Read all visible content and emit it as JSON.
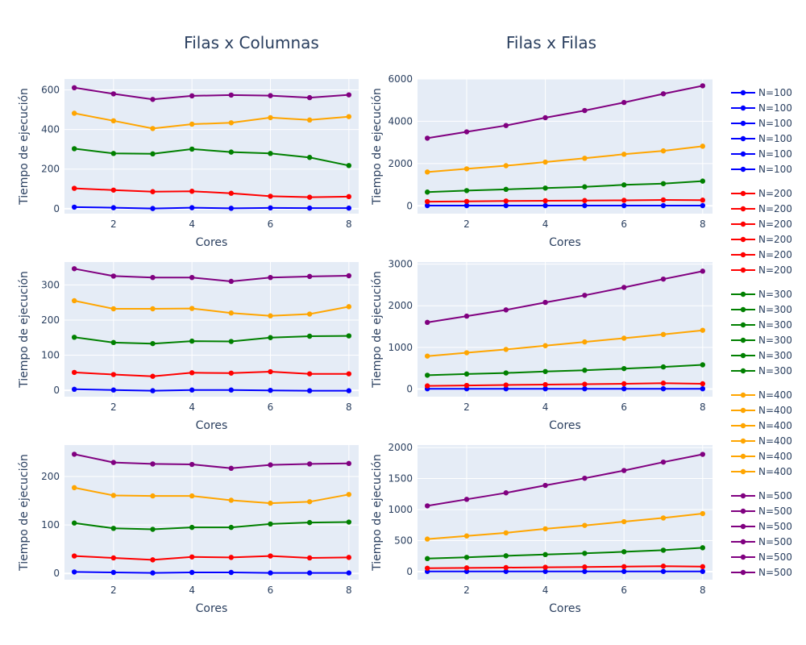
{
  "chart_data": {
    "type": "line",
    "subplot_titles": [
      "Filas x Columnas",
      "Filas x Filas"
    ],
    "xlabel": "Cores",
    "ylabel": "Tiempo de ejecución",
    "x": [
      1,
      2,
      3,
      4,
      5,
      6,
      7,
      8
    ],
    "xlim": [
      0.75,
      8.25
    ],
    "x_ticks": [
      2,
      4,
      6,
      8
    ],
    "grid": true,
    "legend_position": "right",
    "colors": {
      "N=100": "#0000ff",
      "N=200": "#ff0000",
      "N=300": "#008000",
      "N=400": "#ffa500",
      "N=500": "#800080"
    },
    "panels": [
      {
        "row": 1,
        "col": 1,
        "title": "Filas x Columnas",
        "ylim": [
          -25,
          655
        ],
        "y_ticks": [
          0,
          200,
          400,
          600
        ],
        "series": [
          {
            "name": "N=100",
            "color": "#0000ff",
            "values": [
              8,
              5,
              1,
              5,
              2,
              4,
              3,
              3
            ]
          },
          {
            "name": "N=200",
            "color": "#ff0000",
            "values": [
              103,
              94,
              86,
              88,
              78,
              63,
              58,
              61
            ]
          },
          {
            "name": "N=300",
            "color": "#008000",
            "values": [
              303,
              279,
              277,
              301,
              286,
              279,
              259,
              218
            ]
          },
          {
            "name": "N=400",
            "color": "#ffa500",
            "values": [
              482,
              444,
              405,
              427,
              434,
              460,
              448,
              465
            ]
          },
          {
            "name": "N=500",
            "color": "#800080",
            "values": [
              611,
              580,
              552,
              570,
              574,
              571,
              561,
              575
            ]
          }
        ]
      },
      {
        "row": 1,
        "col": 2,
        "title": "Filas x Filas",
        "ylim": [
          -370,
          6000
        ],
        "y_ticks": [
          0,
          2000,
          4000,
          6000
        ],
        "series": [
          {
            "name": "N=100",
            "color": "#0000ff",
            "values": [
              10,
              10,
              10,
              10,
              10,
              10,
              10,
              10
            ]
          },
          {
            "name": "N=200",
            "color": "#ff0000",
            "values": [
              200,
              210,
              230,
              240,
              250,
              260,
              280,
              270
            ]
          },
          {
            "name": "N=300",
            "color": "#008000",
            "values": [
              650,
              720,
              780,
              840,
              900,
              990,
              1050,
              1170
            ]
          },
          {
            "name": "N=400",
            "color": "#ffa500",
            "values": [
              1600,
              1750,
              1900,
              2070,
              2250,
              2440,
              2600,
              2820
            ]
          },
          {
            "name": "N=500",
            "color": "#800080",
            "values": [
              3200,
              3500,
              3800,
              4170,
              4510,
              4890,
              5300,
              5680
            ]
          }
        ]
      },
      {
        "row": 2,
        "col": 1,
        "ylim": [
          -18,
          365
        ],
        "y_ticks": [
          0,
          100,
          200,
          300
        ],
        "series": [
          {
            "name": "N=100",
            "color": "#0000ff",
            "values": [
              3,
              1,
              -1,
              1,
              1,
              0,
              -1,
              -1
            ]
          },
          {
            "name": "N=200",
            "color": "#ff0000",
            "values": [
              51,
              45,
              40,
              50,
              49,
              53,
              47,
              47
            ]
          },
          {
            "name": "N=300",
            "color": "#008000",
            "values": [
              151,
              136,
              133,
              140,
              139,
              150,
              154,
              155
            ]
          },
          {
            "name": "N=400",
            "color": "#ffa500",
            "values": [
              255,
              232,
              232,
              233,
              220,
              212,
              217,
              238
            ]
          },
          {
            "name": "N=500",
            "color": "#800080",
            "values": [
              346,
              325,
              321,
              321,
              310,
              321,
              324,
              326
            ]
          }
        ]
      },
      {
        "row": 2,
        "col": 2,
        "ylim": [
          -185,
          3050
        ],
        "y_ticks": [
          0,
          1000,
          2000,
          3000
        ],
        "series": [
          {
            "name": "N=100",
            "color": "#0000ff",
            "values": [
              5,
              5,
              5,
              5,
              5,
              5,
              5,
              5
            ]
          },
          {
            "name": "N=200",
            "color": "#ff0000",
            "values": [
              75,
              85,
              95,
              105,
              115,
              125,
              140,
              125
            ]
          },
          {
            "name": "N=300",
            "color": "#008000",
            "values": [
              330,
              360,
              385,
              420,
              450,
              490,
              530,
              580
            ]
          },
          {
            "name": "N=400",
            "color": "#ffa500",
            "values": [
              790,
              870,
              950,
              1040,
              1130,
              1220,
              1310,
              1410
            ]
          },
          {
            "name": "N=500",
            "color": "#800080",
            "values": [
              1600,
              1750,
              1900,
              2080,
              2250,
              2440,
              2640,
              2830
            ]
          }
        ]
      },
      {
        "row": 3,
        "col": 1,
        "ylim": [
          -13,
          265
        ],
        "y_ticks": [
          0,
          100,
          200
        ],
        "series": [
          {
            "name": "N=100",
            "color": "#0000ff",
            "values": [
              3,
              2,
              1,
              2,
              2,
              1,
              1,
              1
            ]
          },
          {
            "name": "N=200",
            "color": "#ff0000",
            "values": [
              36,
              32,
              28,
              34,
              33,
              36,
              32,
              33
            ]
          },
          {
            "name": "N=300",
            "color": "#008000",
            "values": [
              104,
              93,
              91,
              95,
              95,
              102,
              105,
              106
            ]
          },
          {
            "name": "N=400",
            "color": "#ffa500",
            "values": [
              177,
              161,
              160,
              160,
              151,
              145,
              148,
              163
            ]
          },
          {
            "name": "N=500",
            "color": "#800080",
            "values": [
              246,
              229,
              226,
              225,
              217,
              224,
              226,
              227
            ]
          }
        ]
      },
      {
        "row": 3,
        "col": 2,
        "ylim": [
          -130,
          2040
        ],
        "y_ticks": [
          0,
          500,
          1000,
          1500,
          2000
        ],
        "series": [
          {
            "name": "N=100",
            "color": "#0000ff",
            "values": [
              3,
              3,
              3,
              3,
              3,
              3,
              3,
              3
            ]
          },
          {
            "name": "N=200",
            "color": "#ff0000",
            "values": [
              55,
              60,
              65,
              70,
              75,
              80,
              88,
              80
            ]
          },
          {
            "name": "N=300",
            "color": "#008000",
            "values": [
              210,
              230,
              255,
              275,
              295,
              320,
              345,
              385
            ]
          },
          {
            "name": "N=400",
            "color": "#ffa500",
            "values": [
              525,
              575,
              625,
              690,
              745,
              805,
              865,
              935
            ]
          },
          {
            "name": "N=500",
            "color": "#800080",
            "values": [
              1060,
              1165,
              1270,
              1390,
              1505,
              1630,
              1765,
              1890
            ]
          }
        ]
      }
    ],
    "legend": [
      {
        "label": "N=100",
        "color": "#0000ff"
      },
      {
        "label": "N=100",
        "color": "#0000ff"
      },
      {
        "label": "N=100",
        "color": "#0000ff"
      },
      {
        "label": "N=100",
        "color": "#0000ff"
      },
      {
        "label": "N=100",
        "color": "#0000ff"
      },
      {
        "label": "N=100",
        "color": "#0000ff"
      },
      {
        "label": "N=200",
        "color": "#ff0000"
      },
      {
        "label": "N=200",
        "color": "#ff0000"
      },
      {
        "label": "N=200",
        "color": "#ff0000"
      },
      {
        "label": "N=200",
        "color": "#ff0000"
      },
      {
        "label": "N=200",
        "color": "#ff0000"
      },
      {
        "label": "N=200",
        "color": "#ff0000"
      },
      {
        "label": "N=300",
        "color": "#008000"
      },
      {
        "label": "N=300",
        "color": "#008000"
      },
      {
        "label": "N=300",
        "color": "#008000"
      },
      {
        "label": "N=300",
        "color": "#008000"
      },
      {
        "label": "N=300",
        "color": "#008000"
      },
      {
        "label": "N=300",
        "color": "#008000"
      },
      {
        "label": "N=400",
        "color": "#ffa500"
      },
      {
        "label": "N=400",
        "color": "#ffa500"
      },
      {
        "label": "N=400",
        "color": "#ffa500"
      },
      {
        "label": "N=400",
        "color": "#ffa500"
      },
      {
        "label": "N=400",
        "color": "#ffa500"
      },
      {
        "label": "N=400",
        "color": "#ffa500"
      },
      {
        "label": "N=500",
        "color": "#800080"
      },
      {
        "label": "N=500",
        "color": "#800080"
      },
      {
        "label": "N=500",
        "color": "#800080"
      },
      {
        "label": "N=500",
        "color": "#800080"
      },
      {
        "label": "N=500",
        "color": "#800080"
      },
      {
        "label": "N=500",
        "color": "#800080"
      }
    ]
  }
}
